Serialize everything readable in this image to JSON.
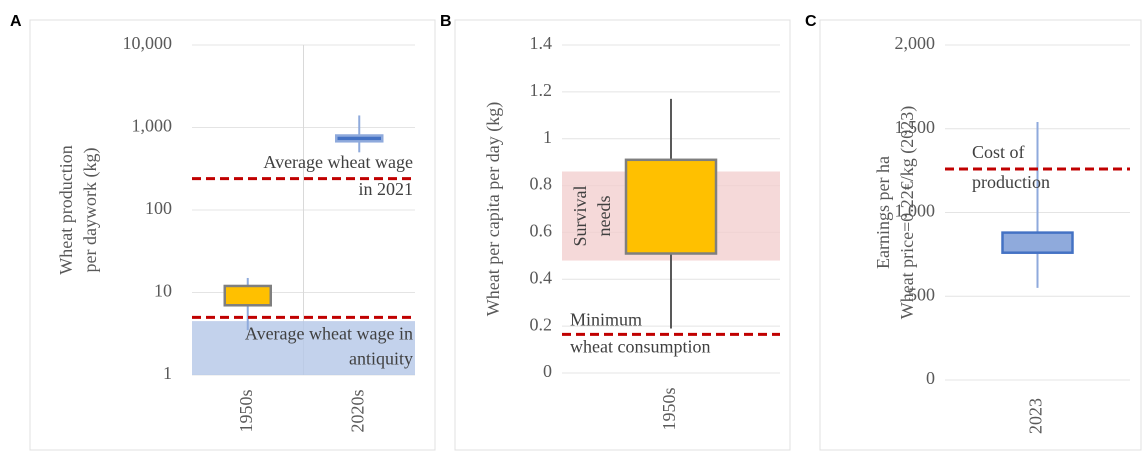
{
  "chart_data": [
    {
      "type": "box",
      "panel": "A",
      "y_label": [
        "Wheat production",
        "per daywork (kg)"
      ],
      "log_scale": true,
      "ylim": [
        1,
        10000
      ],
      "yticks": [
        1,
        10,
        100,
        {
          "value": 1000,
          "label": "1,000"
        },
        {
          "value": 10000,
          "label": "10,000"
        }
      ],
      "categories": [
        "1950s",
        "2020s"
      ],
      "boxes": [
        {
          "min": 3.5,
          "q1": 7,
          "q3": 12,
          "max": 15,
          "color": "#ffc000",
          "edge": "#7f7f7f",
          "whisker": "#8faadc"
        },
        {
          "min": 500,
          "q1": 680,
          "q3": 800,
          "max": 1400,
          "color": "#4472c4",
          "edge": "#8faadc",
          "whisker": "#8faadc"
        }
      ],
      "bands": [
        {
          "from": 1,
          "to": 4.5,
          "color": "#b4c7e7"
        }
      ],
      "ref_lines": [
        {
          "value": 240,
          "color": "#c00000",
          "label": [
            "Average wheat wage",
            "in 2021"
          ]
        },
        {
          "value": 5,
          "color": "#c00000",
          "label": [
            "Average wheat wage in",
            "antiquity"
          ]
        }
      ]
    },
    {
      "type": "box",
      "panel": "B",
      "y_label": [
        "Wheat per capita per day (kg)"
      ],
      "log_scale": false,
      "ylim": [
        0,
        1.4
      ],
      "yticks": [
        0,
        0.2,
        0.4,
        0.6,
        0.8,
        1,
        1.2,
        1.4
      ],
      "categories": [
        "1950s"
      ],
      "boxes": [
        {
          "min": 0.19,
          "q1": 0.51,
          "q3": 0.91,
          "max": 1.17,
          "color": "#ffc000",
          "edge": "#7f7f7f",
          "whisker": "#595959"
        }
      ],
      "bands": [
        {
          "from": 0.48,
          "to": 0.86,
          "color": "#f2d0d0",
          "label": [
            "Survival",
            "needs"
          ]
        }
      ],
      "ref_lines": [
        {
          "value": 0.165,
          "color": "#c00000",
          "label": [
            "Minimum",
            "wheat consumption"
          ]
        }
      ]
    },
    {
      "type": "box",
      "panel": "C",
      "y_label": [
        "Earnings per ha",
        "Wheat price=0.22€/kg (2023)"
      ],
      "log_scale": false,
      "ylim": [
        0,
        2000
      ],
      "yticks": [
        0,
        500,
        {
          "value": 1000,
          "label": "1,000"
        },
        {
          "value": 1500,
          "label": "1,500"
        },
        {
          "value": 2000,
          "label": "2,000"
        }
      ],
      "categories": [
        "2023"
      ],
      "boxes": [
        {
          "min": 550,
          "q1": 760,
          "q3": 880,
          "max": 1540,
          "color": "#8faadc",
          "edge": "#4472c4",
          "whisker": "#8faadc"
        }
      ],
      "bands": [],
      "ref_lines": [
        {
          "value": 1260,
          "color": "#c00000",
          "label": [
            "Cost of",
            "production"
          ]
        }
      ]
    }
  ]
}
